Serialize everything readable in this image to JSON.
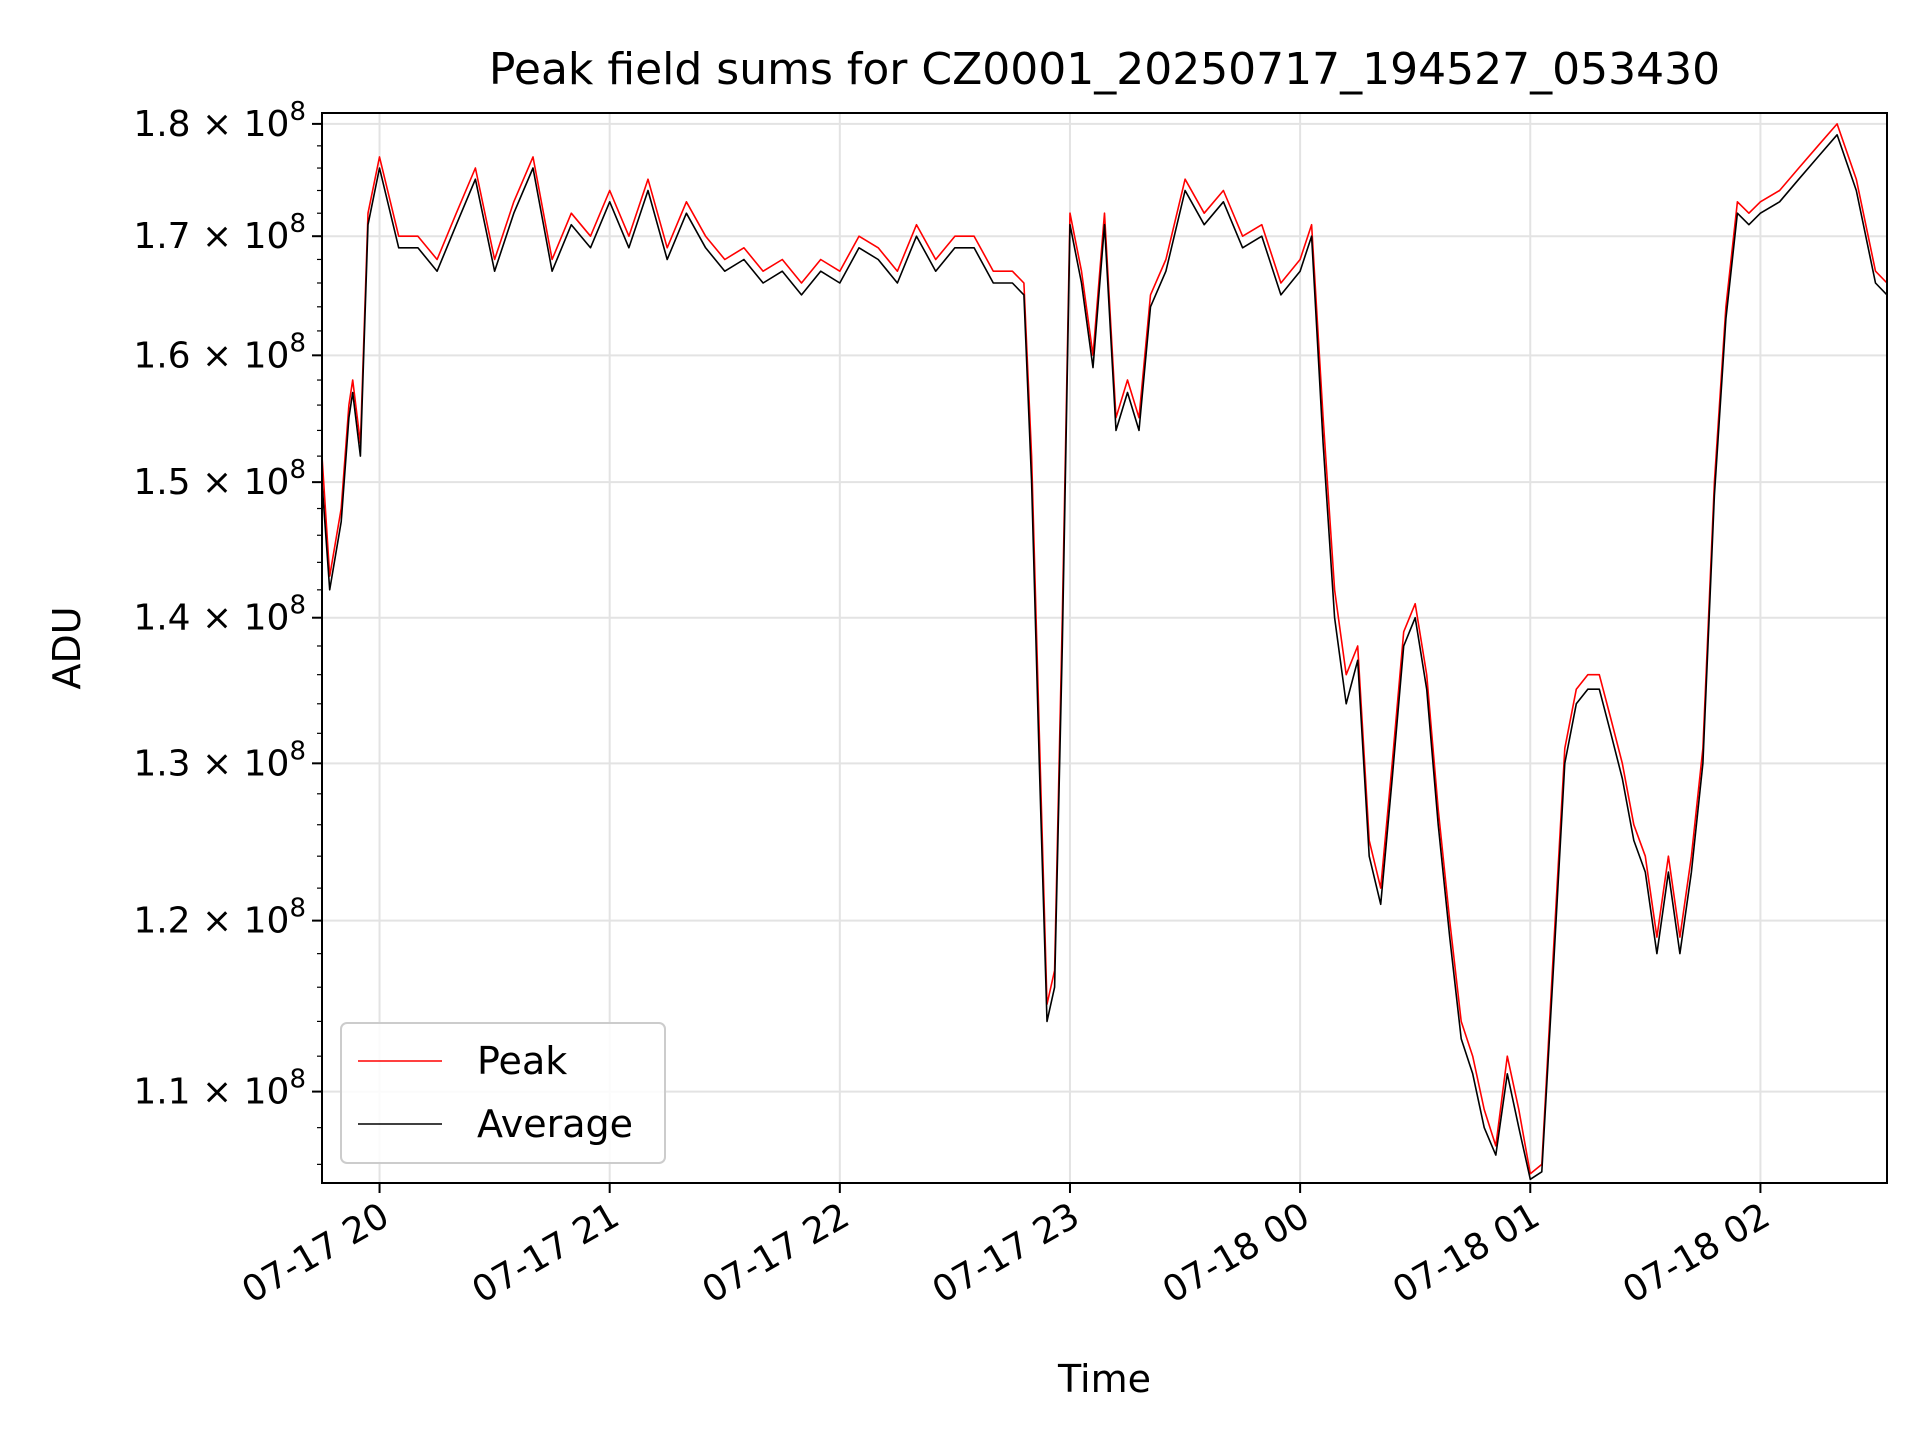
{
  "chart_data": {
    "type": "line",
    "title": "Peak field sums for CZ0001_20250717_194527_053430",
    "xlabel": "Time",
    "ylabel": "ADU",
    "yscale": "log",
    "xlim": [
      "2025-07-17 19:45",
      "2025-07-18 02:33"
    ],
    "ylim": [
      105000000,
      181000000
    ],
    "grid": true,
    "legend": {
      "placement": "lower-left"
    },
    "x_ticks": [
      {
        "value": "2025-07-17 20:00",
        "label": "07-17 20"
      },
      {
        "value": "2025-07-17 21:00",
        "label": "07-17 21"
      },
      {
        "value": "2025-07-17 22:00",
        "label": "07-17 22"
      },
      {
        "value": "2025-07-17 23:00",
        "label": "07-17 23"
      },
      {
        "value": "2025-07-18 00:00",
        "label": "07-18 00"
      },
      {
        "value": "2025-07-18 01:00",
        "label": "07-18 01"
      },
      {
        "value": "2025-07-18 02:00",
        "label": "07-18 02"
      }
    ],
    "y_ticks": [
      {
        "value": 110000000,
        "mantissa": "1.1",
        "base": "10",
        "exp": "8"
      },
      {
        "value": 120000000,
        "mantissa": "1.2",
        "base": "10",
        "exp": "8"
      },
      {
        "value": 130000000,
        "mantissa": "1.3",
        "base": "10",
        "exp": "8"
      },
      {
        "value": 140000000,
        "mantissa": "1.4",
        "base": "10",
        "exp": "8"
      },
      {
        "value": 150000000,
        "mantissa": "1.5",
        "base": "10",
        "exp": "8"
      },
      {
        "value": 160000000,
        "mantissa": "1.6",
        "base": "10",
        "exp": "8"
      },
      {
        "value": 170000000,
        "mantissa": "1.7",
        "base": "10",
        "exp": "8"
      },
      {
        "value": 180000000,
        "mantissa": "1.8",
        "base": "10",
        "exp": "8"
      }
    ],
    "times": [
      "2025-07-17 19:45",
      "2025-07-17 19:47",
      "2025-07-17 19:50",
      "2025-07-17 19:52",
      "2025-07-17 19:53",
      "2025-07-17 19:55",
      "2025-07-17 19:57",
      "2025-07-17 20:00",
      "2025-07-17 20:05",
      "2025-07-17 20:10",
      "2025-07-17 20:15",
      "2025-07-17 20:20",
      "2025-07-17 20:25",
      "2025-07-17 20:30",
      "2025-07-17 20:35",
      "2025-07-17 20:40",
      "2025-07-17 20:45",
      "2025-07-17 20:50",
      "2025-07-17 20:55",
      "2025-07-17 21:00",
      "2025-07-17 21:05",
      "2025-07-17 21:10",
      "2025-07-17 21:15",
      "2025-07-17 21:20",
      "2025-07-17 21:25",
      "2025-07-17 21:30",
      "2025-07-17 21:35",
      "2025-07-17 21:40",
      "2025-07-17 21:45",
      "2025-07-17 21:50",
      "2025-07-17 21:55",
      "2025-07-17 22:00",
      "2025-07-17 22:05",
      "2025-07-17 22:10",
      "2025-07-17 22:15",
      "2025-07-17 22:20",
      "2025-07-17 22:25",
      "2025-07-17 22:30",
      "2025-07-17 22:35",
      "2025-07-17 22:40",
      "2025-07-17 22:45",
      "2025-07-17 22:48",
      "2025-07-17 22:50",
      "2025-07-17 22:52",
      "2025-07-17 22:54",
      "2025-07-17 22:56",
      "2025-07-17 22:58",
      "2025-07-17 23:00",
      "2025-07-17 23:03",
      "2025-07-17 23:06",
      "2025-07-17 23:09",
      "2025-07-17 23:12",
      "2025-07-17 23:15",
      "2025-07-17 23:18",
      "2025-07-17 23:21",
      "2025-07-17 23:25",
      "2025-07-17 23:30",
      "2025-07-17 23:35",
      "2025-07-17 23:40",
      "2025-07-17 23:45",
      "2025-07-17 23:50",
      "2025-07-17 23:55",
      "2025-07-18 00:00",
      "2025-07-18 00:03",
      "2025-07-18 00:06",
      "2025-07-18 00:09",
      "2025-07-18 00:12",
      "2025-07-18 00:15",
      "2025-07-18 00:18",
      "2025-07-18 00:21",
      "2025-07-18 00:24",
      "2025-07-18 00:27",
      "2025-07-18 00:30",
      "2025-07-18 00:33",
      "2025-07-18 00:36",
      "2025-07-18 00:39",
      "2025-07-18 00:42",
      "2025-07-18 00:45",
      "2025-07-18 00:48",
      "2025-07-18 00:51",
      "2025-07-18 00:54",
      "2025-07-18 00:57",
      "2025-07-18 01:00",
      "2025-07-18 01:03",
      "2025-07-18 01:06",
      "2025-07-18 01:09",
      "2025-07-18 01:12",
      "2025-07-18 01:15",
      "2025-07-18 01:18",
      "2025-07-18 01:21",
      "2025-07-18 01:24",
      "2025-07-18 01:27",
      "2025-07-18 01:30",
      "2025-07-18 01:33",
      "2025-07-18 01:36",
      "2025-07-18 01:39",
      "2025-07-18 01:42",
      "2025-07-18 01:45",
      "2025-07-18 01:48",
      "2025-07-18 01:51",
      "2025-07-18 01:54",
      "2025-07-18 01:57",
      "2025-07-18 02:00",
      "2025-07-18 02:05",
      "2025-07-18 02:10",
      "2025-07-18 02:15",
      "2025-07-18 02:20",
      "2025-07-18 02:25",
      "2025-07-18 02:30",
      "2025-07-18 02:33"
    ],
    "series": [
      {
        "name": "Peak",
        "color": "#ff0000",
        "values": [
          152000000,
          143000000,
          148000000,
          156000000,
          158000000,
          153000000,
          172000000,
          177000000,
          170000000,
          170000000,
          168000000,
          172000000,
          176000000,
          168000000,
          173000000,
          177000000,
          168000000,
          172000000,
          170000000,
          174000000,
          170000000,
          175000000,
          169000000,
          173000000,
          170000000,
          168000000,
          169000000,
          167000000,
          168000000,
          166000000,
          168000000,
          167000000,
          170000000,
          169000000,
          167000000,
          171000000,
          168000000,
          170000000,
          170000000,
          167000000,
          167000000,
          166000000,
          152000000,
          132000000,
          115000000,
          117000000,
          140000000,
          172000000,
          167000000,
          160000000,
          172000000,
          155000000,
          158000000,
          155000000,
          165000000,
          168000000,
          175000000,
          172000000,
          174000000,
          170000000,
          171000000,
          166000000,
          168000000,
          171000000,
          155000000,
          142000000,
          136000000,
          138000000,
          125000000,
          122000000,
          130000000,
          139000000,
          141000000,
          136000000,
          127000000,
          120000000,
          114000000,
          112000000,
          109000000,
          107000000,
          112000000,
          109000000,
          105500000,
          106000000,
          118000000,
          131000000,
          135000000,
          136000000,
          136000000,
          133000000,
          130000000,
          126000000,
          124000000,
          119000000,
          124000000,
          119000000,
          124000000,
          131000000,
          150000000,
          164000000,
          173000000,
          172000000,
          173000000,
          174000000,
          176000000,
          178000000,
          180000000,
          175000000,
          167000000,
          166000000
        ]
      },
      {
        "name": "Average",
        "color": "#000000",
        "values": [
          150000000,
          142000000,
          147000000,
          155000000,
          157000000,
          152000000,
          171000000,
          176000000,
          169000000,
          169000000,
          167000000,
          171000000,
          175000000,
          167000000,
          172000000,
          176000000,
          167000000,
          171000000,
          169000000,
          173000000,
          169000000,
          174000000,
          168000000,
          172000000,
          169000000,
          167000000,
          168000000,
          166000000,
          167000000,
          165000000,
          167000000,
          166000000,
          169000000,
          168000000,
          166000000,
          170000000,
          167000000,
          169000000,
          169000000,
          166000000,
          166000000,
          165000000,
          150000000,
          130000000,
          114000000,
          116000000,
          138000000,
          171000000,
          166000000,
          159000000,
          171000000,
          154000000,
          157000000,
          154000000,
          164000000,
          167000000,
          174000000,
          171000000,
          173000000,
          169000000,
          170000000,
          165000000,
          167000000,
          170000000,
          153000000,
          140000000,
          134000000,
          137000000,
          124000000,
          121000000,
          129000000,
          138000000,
          140000000,
          135000000,
          126000000,
          119000000,
          113000000,
          111000000,
          108000000,
          106500000,
          111000000,
          108000000,
          105200000,
          105600000,
          117000000,
          130000000,
          134000000,
          135000000,
          135000000,
          132000000,
          129000000,
          125000000,
          123000000,
          118000000,
          123000000,
          118000000,
          123000000,
          130000000,
          149000000,
          163000000,
          172000000,
          171000000,
          172000000,
          173000000,
          175000000,
          177000000,
          179000000,
          174000000,
          166000000,
          165000000
        ]
      }
    ]
  }
}
